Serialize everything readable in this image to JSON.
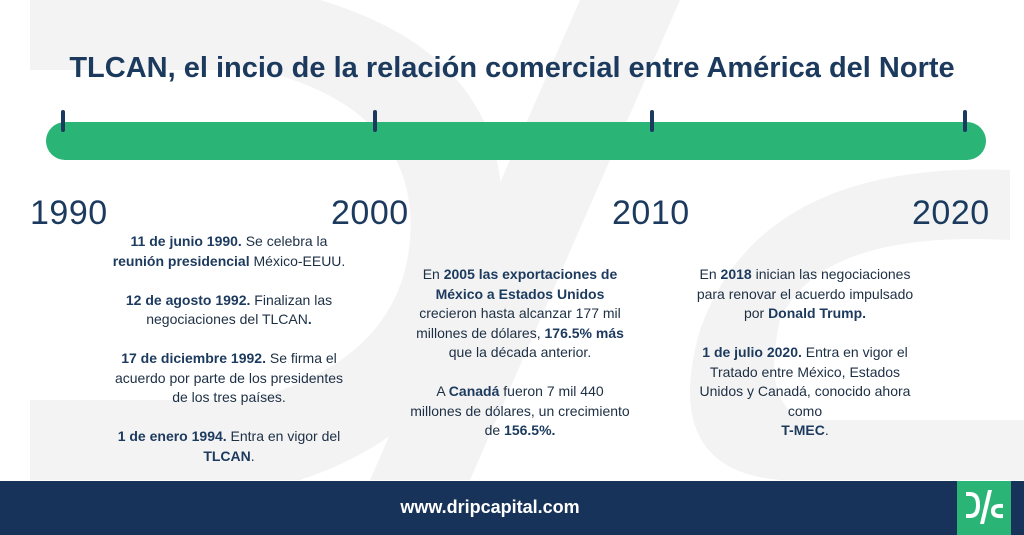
{
  "title": "TLCAN, el incio de la relación comercial entre América del Norte",
  "years": [
    "1990",
    "2000",
    "2010",
    "2020"
  ],
  "col1": [
    {
      "b": "11 de junio 1990.",
      "t1": " Se celebra la ",
      "b2": "reunión presidencial",
      "t2": " México-EEUU."
    },
    {
      "b": "12 de agosto 1992.",
      "t1": " Finalizan las negociaciones del TLCAN",
      "b2": ".",
      "t2": ""
    },
    {
      "b": "17 de diciembre 1992.",
      "t1": " Se firma el acuerdo por parte de los presidentes de los tres países.",
      "b2": "",
      "t2": ""
    },
    {
      "b": "1 de enero 1994.",
      "t1": " Entra en vigor del ",
      "b2": "TLCAN",
      "t2": "."
    }
  ],
  "col2": {
    "p1": {
      "t0": "En ",
      "b1": "2005 las exportaciones de México a Estados Unidos",
      "t1": " crecieron hasta alcanzar 177 mil millones de dólares, ",
      "b2": "176.5% más",
      "t2": " que la década anterior."
    },
    "p2": {
      "t0": "A ",
      "b1": "Canadá",
      "t1": " fueron 7 mil 440 millones de dólares, un crecimiento de ",
      "b2": "156.5%.",
      "t2": ""
    }
  },
  "col3": {
    "p1": {
      "t0": "En ",
      "b1": "2018",
      "t1": " inician las negociaciones para renovar el acuerdo impulsado por ",
      "b2": "Donald Trump.",
      "t2": ""
    },
    "p2": {
      "t0": "",
      "b1": "1 de julio 2020.",
      "t1": " Entra en vigor el Tratado entre México, Estados Unidos y Canadá, conocido ahora como",
      "b2": "T-MEC",
      "t2": "."
    }
  },
  "footer": {
    "url": "www.dripcapital.com"
  },
  "colors": {
    "green": "#2ab577",
    "navy": "#173359",
    "text": "#1c3a5e"
  },
  "icons": {
    "watermark": "dripcapital-watermark-logo",
    "footer": "dripcapital-logo"
  }
}
